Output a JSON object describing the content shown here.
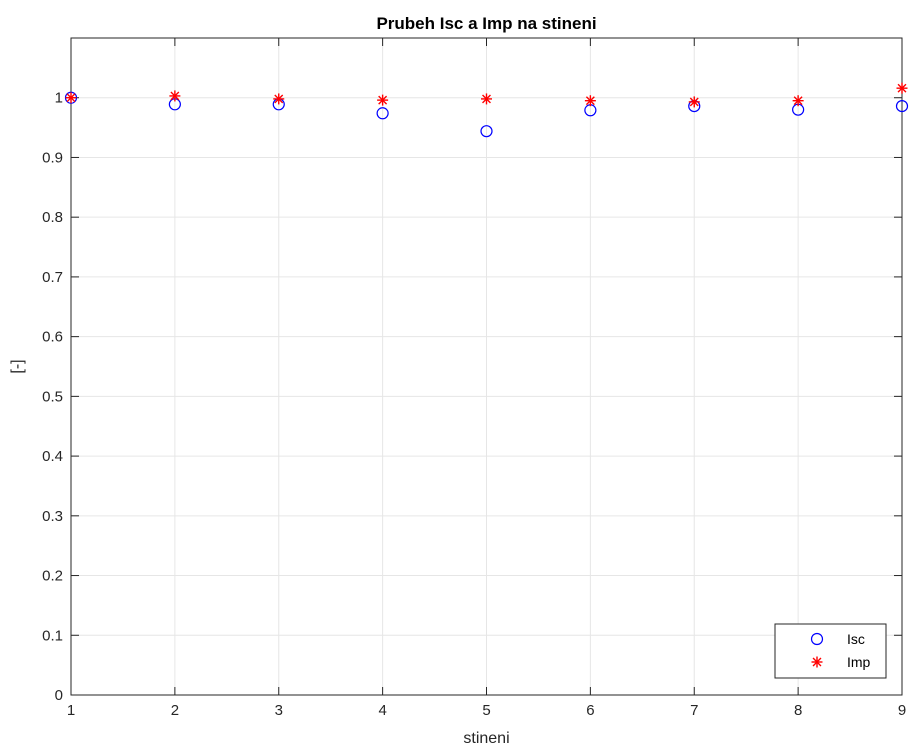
{
  "chart_data": {
    "type": "scatter",
    "title": "Prubeh Isc a Imp na stineni",
    "xlabel": "stineni",
    "ylabel": "[-]",
    "xlim": [
      1,
      9
    ],
    "ylim": [
      0,
      1.1
    ],
    "xticks": [
      "1",
      "2",
      "3",
      "4",
      "5",
      "6",
      "7",
      "8",
      "9"
    ],
    "yticks": [
      "0",
      "0.1",
      "0.2",
      "0.3",
      "0.4",
      "0.5",
      "0.6",
      "0.7",
      "0.8",
      "0.9",
      "1"
    ],
    "grid": true,
    "legend_position": "bottom-right",
    "x": [
      1,
      2,
      3,
      4,
      5,
      6,
      7,
      8,
      9
    ],
    "series": [
      {
        "name": "Isc",
        "marker": "circle",
        "color": "#0000ff",
        "values": [
          1.0,
          0.989,
          0.989,
          0.974,
          0.944,
          0.979,
          0.986,
          0.98,
          0.986
        ]
      },
      {
        "name": "Imp",
        "marker": "asterisk",
        "color": "#ff0000",
        "values": [
          1.0,
          1.003,
          0.998,
          0.996,
          0.998,
          0.995,
          0.993,
          0.995,
          1.016
        ]
      }
    ]
  }
}
